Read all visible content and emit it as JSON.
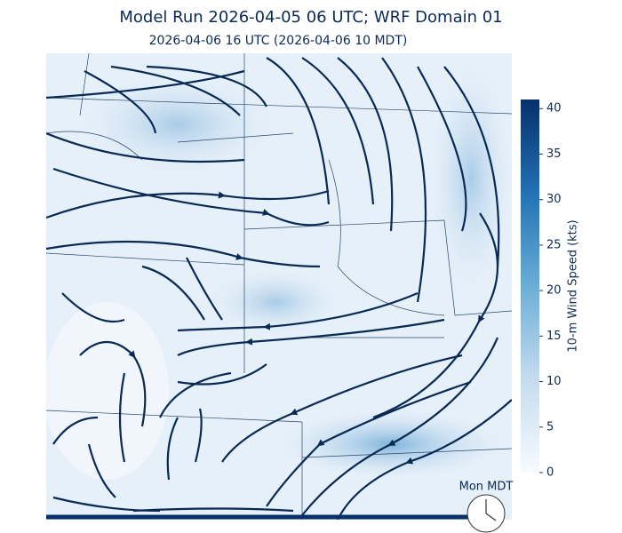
{
  "title": "Model Run 2026-04-05 06 UTC; WRF Domain 01",
  "subtitle": "2026-04-06 16 UTC  (2026-04-06 10 MDT)",
  "colorbar": {
    "label": "10-m Wind Speed (kts)",
    "lim": [
      0,
      41
    ],
    "ticks": [
      0,
      5,
      10,
      15,
      20,
      25,
      30,
      35,
      40
    ]
  },
  "clock_label": "Mon MDT"
}
